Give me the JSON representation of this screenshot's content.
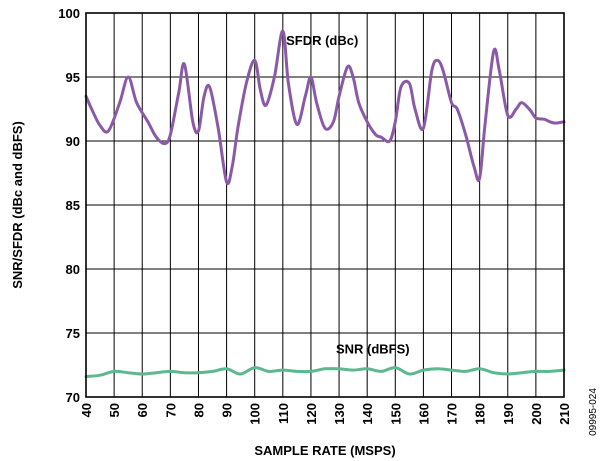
{
  "chart_data": {
    "type": "line",
    "xlabel": "SAMPLE RATE (MSPS)",
    "ylabel": "SNR/SFDR (dBc and dBFS)",
    "xlim": [
      40,
      210
    ],
    "ylim": [
      70,
      100
    ],
    "x_ticks": [
      40,
      50,
      60,
      70,
      80,
      90,
      100,
      110,
      120,
      130,
      140,
      150,
      160,
      170,
      180,
      190,
      200,
      210
    ],
    "y_ticks": [
      70,
      75,
      80,
      85,
      90,
      95,
      100
    ],
    "grid": true,
    "series": [
      {
        "name": "SFDR (dBc)",
        "color": "#8a5aa8",
        "x": [
          40,
          42,
          45,
          48,
          52,
          55,
          58,
          62,
          65,
          68,
          70,
          73,
          75,
          78,
          80,
          82,
          84,
          87,
          90,
          92,
          94,
          97,
          100,
          102,
          104,
          107,
          110,
          112,
          115,
          118,
          120,
          122,
          125,
          128,
          130,
          133,
          135,
          137,
          140,
          143,
          145,
          148,
          150,
          152,
          155,
          157,
          160,
          163,
          165,
          167,
          170,
          172,
          175,
          178,
          180,
          182,
          185,
          187,
          190,
          193,
          195,
          198,
          200,
          203,
          205,
          207,
          210
        ],
        "y": [
          93.5,
          92.5,
          91.2,
          90.8,
          93.0,
          95.0,
          93.0,
          91.5,
          90.3,
          89.8,
          90.5,
          93.8,
          96.0,
          91.5,
          90.8,
          93.5,
          94.2,
          91.0,
          86.8,
          88.0,
          91.0,
          94.5,
          96.3,
          94.0,
          92.8,
          95.0,
          98.6,
          94.5,
          91.3,
          93.5,
          95.0,
          93.0,
          91.0,
          91.5,
          93.5,
          95.8,
          95.0,
          93.0,
          91.5,
          90.5,
          90.3,
          90.0,
          91.5,
          94.2,
          94.5,
          92.5,
          91.0,
          95.5,
          96.3,
          95.5,
          93.0,
          92.5,
          90.5,
          88.0,
          87.1,
          91.5,
          97.0,
          95.5,
          92.0,
          92.5,
          93.0,
          92.4,
          91.8,
          91.7,
          91.5,
          91.4,
          91.5
        ]
      },
      {
        "name": "SNR (dBFS)",
        "color": "#5cb88e",
        "x": [
          40,
          45,
          50,
          55,
          60,
          65,
          70,
          75,
          80,
          85,
          90,
          95,
          100,
          105,
          110,
          115,
          120,
          125,
          130,
          135,
          140,
          145,
          150,
          155,
          160,
          165,
          170,
          175,
          180,
          185,
          190,
          195,
          200,
          205,
          210
        ],
        "y": [
          71.6,
          71.7,
          72.0,
          71.9,
          71.8,
          71.9,
          72.0,
          71.9,
          71.9,
          72.0,
          72.2,
          71.8,
          72.3,
          72.0,
          72.1,
          72.0,
          72.0,
          72.2,
          72.2,
          72.1,
          72.2,
          72.0,
          72.3,
          71.8,
          72.1,
          72.2,
          72.1,
          72.0,
          72.2,
          71.9,
          71.8,
          71.9,
          72.0,
          72.0,
          72.1
        ]
      }
    ],
    "annotations": [
      {
        "text": "SFDR (dBc)",
        "x": 124,
        "y": 97.5
      },
      {
        "text": "SNR (dBFS)",
        "x": 142,
        "y": 73.4
      }
    ],
    "figure_id": "09995-024"
  }
}
